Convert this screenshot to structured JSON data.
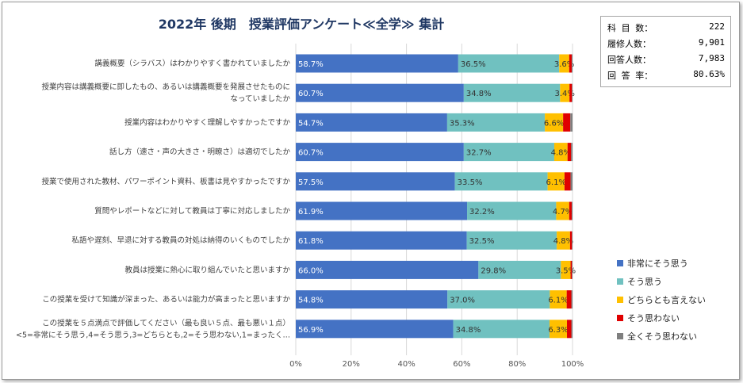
{
  "title": "2022年 後期　授業評価アンケート≪全学≫ 集計",
  "stats": [
    {
      "label": "科 目 数：",
      "value": "222"
    },
    {
      "label": "履修人数：",
      "value": "9,901"
    },
    {
      "label": "回答人数：",
      "value": "7,983"
    },
    {
      "label": "回 答 率：",
      "value": "80.63%"
    }
  ],
  "chart_data": {
    "type": "bar",
    "orientation": "horizontal",
    "stacked": "percent",
    "categories": [
      [
        "講義概要（シラバス）はわかりやすく書かれていましたか"
      ],
      [
        "授業内容は講義概要に即したもの、あるいは講義概要を発展させたものに",
        "なっていましたか"
      ],
      [
        "授業内容はわかりやすく理解しやすかったですか"
      ],
      [
        "話し方（速さ・声の大きさ・明瞭さ）は適切でしたか"
      ],
      [
        "授業で使用された教材、パワーポイント資料、板書は見やすかったですか"
      ],
      [
        "質問やレポートなどに対して教員は丁寧に対応しましたか"
      ],
      [
        "私語や遅刻、早退に対する教員の対処は納得のいくものでしたか"
      ],
      [
        "教員は授業に熱心に取り組んでいたと思いますか"
      ],
      [
        "この授業を受けて知識が深まった、あるいは能力が高まったと思いますか"
      ],
      [
        "この授業を５点満点で評価してください（最も良い５点、最も悪い１点）",
        "<5=非常にそう思う,4=そう思う,3=どちらとも,2=そう思わない,1=まったく…"
      ]
    ],
    "series": [
      {
        "name": "非常にそう思う",
        "color": "#4472c4",
        "values": [
          58.7,
          60.7,
          54.7,
          60.7,
          57.5,
          61.9,
          61.8,
          66.0,
          54.8,
          56.9
        ]
      },
      {
        "name": "そう思う",
        "color": "#70c1c0",
        "values": [
          36.5,
          34.8,
          35.3,
          32.7,
          33.5,
          32.2,
          32.5,
          29.8,
          37.0,
          34.8
        ]
      },
      {
        "name": "どちらとも言えない",
        "color": "#ffc000",
        "values": [
          3.6,
          3.4,
          6.6,
          4.8,
          6.1,
          4.7,
          4.8,
          3.5,
          6.1,
          6.3
        ]
      },
      {
        "name": "そう思わない",
        "color": "#e00000",
        "values": [
          0.9,
          0.9,
          2.6,
          1.3,
          2.2,
          0.9,
          0.7,
          0.5,
          1.7,
          1.6
        ]
      },
      {
        "name": "全くそう思わない",
        "color": "#7f7f7f",
        "values": [
          0.3,
          0.2,
          0.8,
          0.5,
          0.7,
          0.3,
          0.2,
          0.2,
          0.4,
          0.4
        ]
      }
    ],
    "label_series": [
      0,
      1,
      2
    ],
    "xlim": [
      0,
      100
    ],
    "xticks": [
      "0%",
      "20%",
      "40%",
      "60%",
      "80%",
      "100%"
    ],
    "gridlines": true,
    "legend": "right"
  }
}
